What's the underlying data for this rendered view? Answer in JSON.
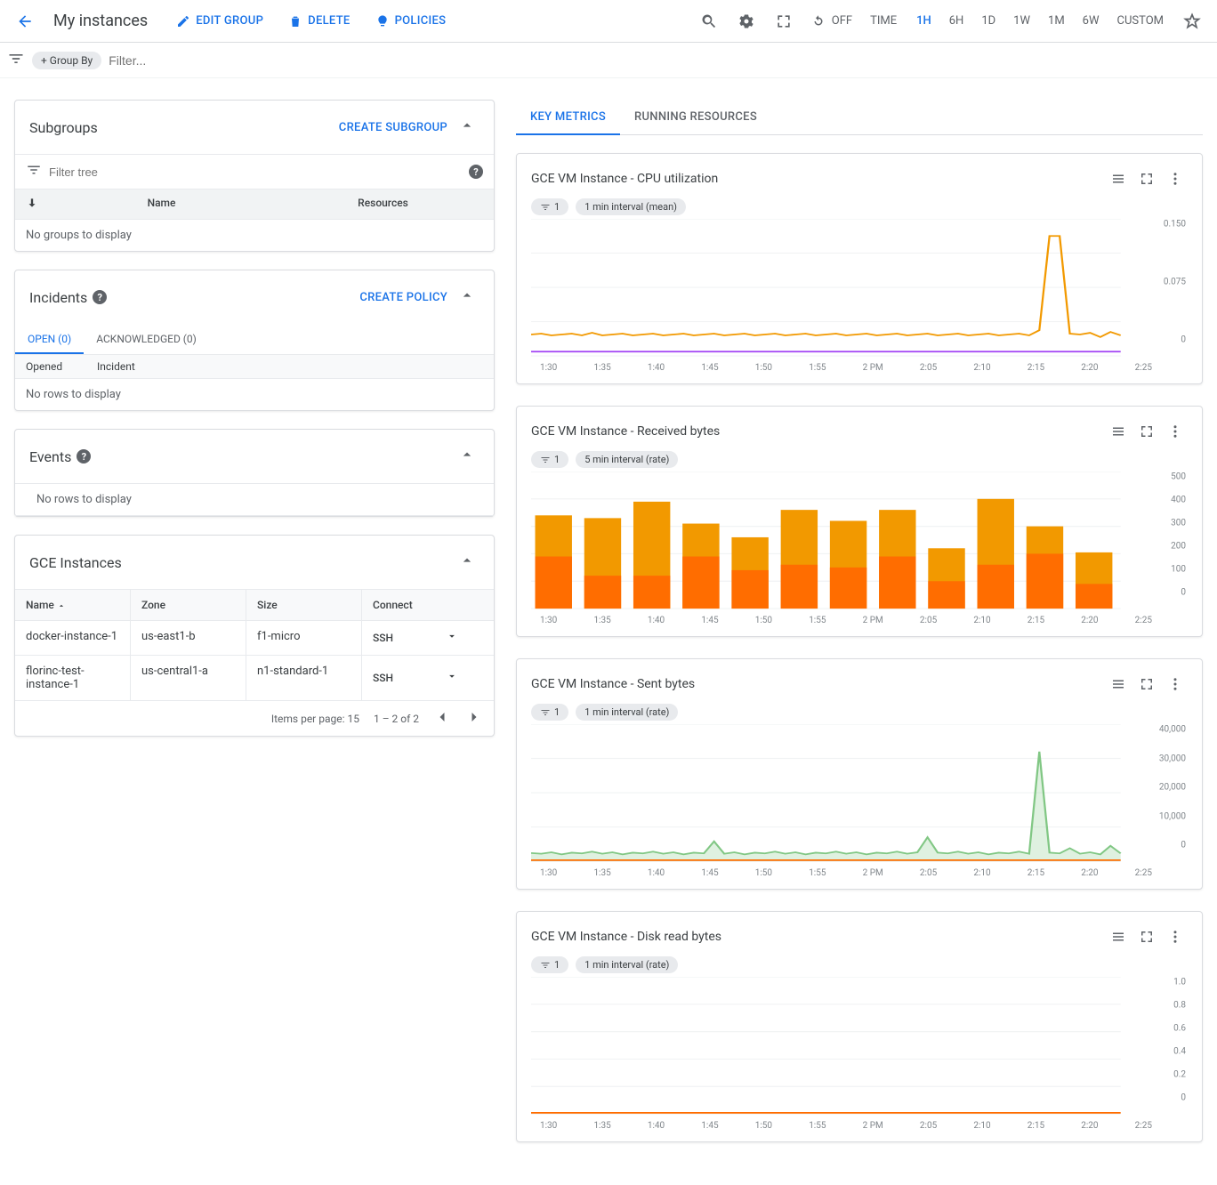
{
  "header": {
    "title": "My instances",
    "actions": {
      "edit": "Edit Group",
      "delete": "Delete",
      "policies": "Policies"
    },
    "off_label": "OFF",
    "time_label": "TIME",
    "ranges": [
      "1H",
      "6H",
      "1D",
      "1W",
      "1M",
      "6W",
      "CUSTOM"
    ],
    "active_range": "1H"
  },
  "filterbar": {
    "group_by": "+ Group By",
    "placeholder": "Filter..."
  },
  "subgroups": {
    "title": "Subgroups",
    "create": "Create Subgroup",
    "filter_placeholder": "Filter tree",
    "col_name": "Name",
    "col_resources": "Resources",
    "empty": "No groups to display"
  },
  "incidents": {
    "title": "Incidents",
    "create": "Create Policy",
    "tab_open": "Open (0)",
    "tab_ack": "Acknowledged (0)",
    "col_opened": "Opened",
    "col_incident": "Incident",
    "empty": "No rows to display"
  },
  "events": {
    "title": "Events",
    "empty": "No rows to display"
  },
  "gce": {
    "title": "GCE Instances",
    "col_name": "Name",
    "col_zone": "Zone",
    "col_size": "Size",
    "col_connect": "Connect",
    "ssh": "SSH",
    "rows": [
      {
        "name": "docker-instance-1",
        "zone": "us-east1-b",
        "size": "f1-micro"
      },
      {
        "name": "florinc-test-instance-1",
        "zone": "us-central1-a",
        "size": "n1-standard-1"
      }
    ],
    "items_per_page": "Items per page: 15",
    "range": "1 – 2 of 2"
  },
  "right_tabs": {
    "key_metrics": "Key Metrics",
    "running": "Running Resources"
  },
  "x_ticks": [
    "1:30",
    "1:35",
    "1:40",
    "1:45",
    "1:50",
    "1:55",
    "2 PM",
    "2:05",
    "2:10",
    "2:15",
    "2:20",
    "2:25"
  ],
  "colors": {
    "orange": "#f29900",
    "purple": "#a142f4",
    "bar_dark": "#ff6d00",
    "bar_light": "#f29900",
    "green": "#81c784",
    "red_flat": "#ff6d00",
    "grid": "#f1f3f4"
  },
  "chart_cpu": {
    "title": "GCE VM Instance - CPU utilization",
    "chip1": "1",
    "chip2": "1 min interval (mean)",
    "y_ticks": [
      "0.150",
      "0.075",
      "0"
    ],
    "series_orange": [
      0.025,
      0.026,
      0.024,
      0.025,
      0.026,
      0.024,
      0.027,
      0.024,
      0.025,
      0.026,
      0.024,
      0.025,
      0.026,
      0.024,
      0.025,
      0.026,
      0.024,
      0.025,
      0.026,
      0.024,
      0.025,
      0.026,
      0.024,
      0.025,
      0.026,
      0.024,
      0.025,
      0.026,
      0.024,
      0.025,
      0.026,
      0.024,
      0.025,
      0.026,
      0.024,
      0.025,
      0.026,
      0.024,
      0.025,
      0.026,
      0.024,
      0.025,
      0.026,
      0.024,
      0.025,
      0.026,
      0.024,
      0.025,
      0.026,
      0.024,
      0.03,
      0.14,
      0.14,
      0.026,
      0.025,
      0.027,
      0.022,
      0.028,
      0.024
    ],
    "series_purple_flat": 0.005,
    "ymax": 0.16
  },
  "chart_recv": {
    "title": "GCE VM Instance - Received bytes",
    "chip1": "1",
    "chip2": "5 min interval (rate)",
    "y_ticks": [
      "500",
      "400",
      "300",
      "200",
      "100",
      "0"
    ],
    "ymax": 500,
    "bars": [
      {
        "light": 340,
        "dark": 190
      },
      {
        "light": 330,
        "dark": 120
      },
      {
        "light": 390,
        "dark": 120
      },
      {
        "light": 310,
        "dark": 190
      },
      {
        "light": 260,
        "dark": 140
      },
      {
        "light": 360,
        "dark": 160
      },
      {
        "light": 320,
        "dark": 150
      },
      {
        "light": 360,
        "dark": 190
      },
      {
        "light": 220,
        "dark": 100
      },
      {
        "light": 400,
        "dark": 160
      },
      {
        "light": 300,
        "dark": 200
      },
      {
        "light": 205,
        "dark": 90
      }
    ]
  },
  "chart_sent": {
    "title": "GCE VM Instance - Sent bytes",
    "chip1": "1",
    "chip2": "1 min interval (rate)",
    "y_ticks": [
      "40,000",
      "30,000",
      "20,000",
      "10,000",
      "0"
    ],
    "ymax": 40000,
    "series": [
      2400,
      2200,
      2600,
      2000,
      2500,
      2300,
      2800,
      2200,
      2600,
      2000,
      2500,
      2300,
      2800,
      2200,
      2600,
      2000,
      2500,
      2300,
      5800,
      2200,
      2600,
      2000,
      2500,
      2300,
      2800,
      2200,
      2600,
      2000,
      2500,
      2300,
      2800,
      2200,
      2600,
      2000,
      2500,
      2300,
      2800,
      2200,
      2600,
      7000,
      2500,
      2300,
      2800,
      2200,
      2600,
      2000,
      2500,
      2300,
      2800,
      2200,
      32000,
      2500,
      2300,
      3800,
      2200,
      2600,
      2000,
      4500,
      2300
    ]
  },
  "chart_disk": {
    "title": "GCE VM Instance - Disk read bytes",
    "chip1": "1",
    "chip2": "1 min interval (rate)",
    "y_ticks": [
      "1.0",
      "0.8",
      "0.6",
      "0.4",
      "0.2",
      "0"
    ],
    "ymax": 1.0
  }
}
